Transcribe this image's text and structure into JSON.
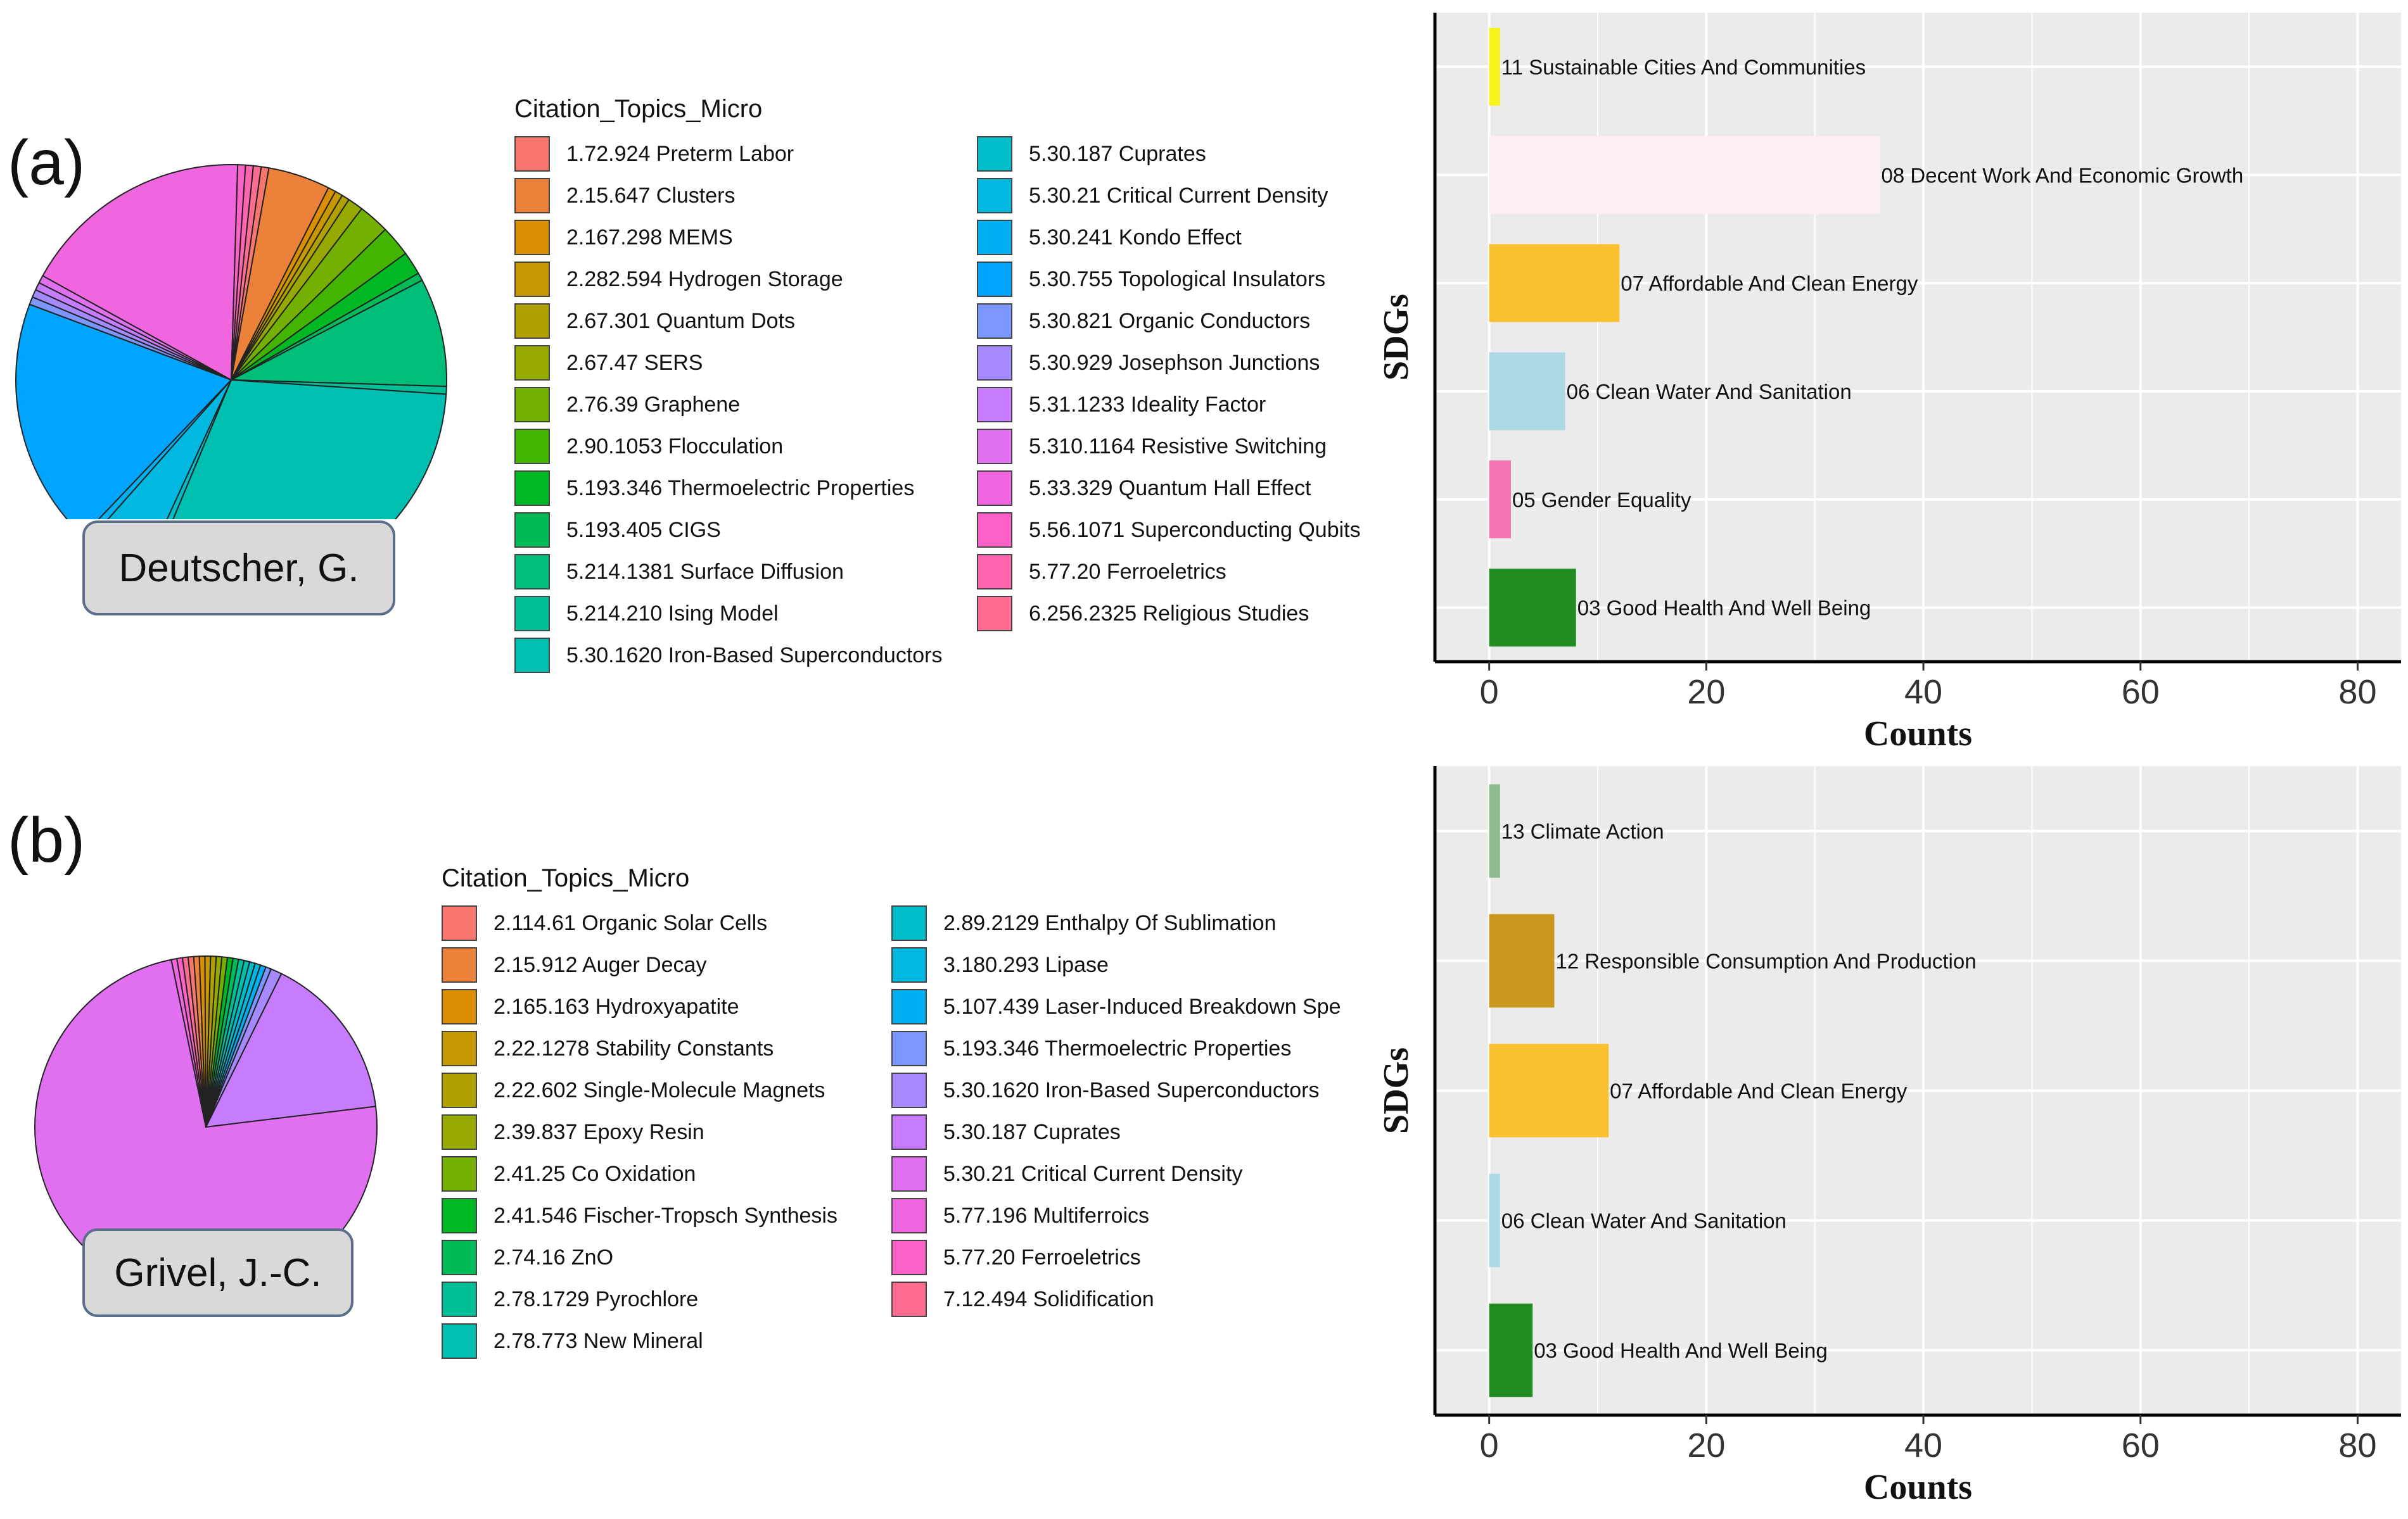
{
  "chart_data": [
    {
      "panel": "(a)",
      "type": "pie",
      "author": "Deutscher, G.",
      "legend_title": "Citation_Topics_Micro",
      "slices": [
        {
          "label": "1.72.924 Preterm Labor",
          "value": 1,
          "color": "#F8766D"
        },
        {
          "label": "2.15.647 Clusters",
          "value": 8,
          "color": "#EC8239"
        },
        {
          "label": "2.167.298 MEMS",
          "value": 1,
          "color": "#DB8E00"
        },
        {
          "label": "2.282.594 Hydrogen Storage",
          "value": 1,
          "color": "#C79800"
        },
        {
          "label": "2.67.301 Quantum Dots",
          "value": 1,
          "color": "#B0A100"
        },
        {
          "label": "2.67.47 SERS",
          "value": 2,
          "color": "#96A900"
        },
        {
          "label": "2.76.39 Graphene",
          "value": 4,
          "color": "#74B000"
        },
        {
          "label": "2.90.1053 Flocculation",
          "value": 4,
          "color": "#43B500"
        },
        {
          "label": "5.193.346 Thermoelectric Properties",
          "value": 3,
          "color": "#00B823"
        },
        {
          "label": "5.193.405 CIGS",
          "value": 1,
          "color": "#00BB57"
        },
        {
          "label": "5.214.1381 Surface Diffusion",
          "value": 14,
          "color": "#00BD78"
        },
        {
          "label": "5.214.210 Ising Model",
          "value": 1,
          "color": "#00BE96"
        },
        {
          "label": "5.30.1620 Iron-Based Superconductors",
          "value": 52,
          "color": "#00BFB1"
        },
        {
          "label": "5.30.187 Cuprates",
          "value": 1,
          "color": "#00BDCA"
        },
        {
          "label": "5.30.21 Critical Current Density",
          "value": 8,
          "color": "#00B8E0"
        },
        {
          "label": "5.30.241 Kondo Effect",
          "value": 1,
          "color": "#00B0F3"
        },
        {
          "label": "5.30.755 Topological Insulators",
          "value": 32,
          "color": "#00A5FF"
        },
        {
          "label": "5.30.821 Organic Conductors",
          "value": 1,
          "color": "#7C96FF"
        },
        {
          "label": "5.30.929 Josephson Junctions",
          "value": 1,
          "color": "#A58AFF"
        },
        {
          "label": "5.31.1233 Ideality Factor",
          "value": 1,
          "color": "#C77CFF"
        },
        {
          "label": "5.310.1164 Resistive Switching",
          "value": 1,
          "color": "#E070F0"
        },
        {
          "label": "5.33.329 Quantum Hall Effect",
          "value": 30,
          "color": "#F066DE"
        },
        {
          "label": "5.56.1071 Superconducting Qubits",
          "value": 1,
          "color": "#FB61C7"
        },
        {
          "label": "5.77.20 Ferroeletrics",
          "value": 1,
          "color": "#FF64AE"
        },
        {
          "label": "6.256.2325 Religious Studies",
          "value": 1,
          "color": "#FF6C92"
        }
      ]
    },
    {
      "panel": "(a)",
      "type": "bar",
      "orientation": "horizontal",
      "xlabel": "Counts",
      "ylabel": "SDGs",
      "xlim": [
        -5,
        84
      ],
      "xticks": [
        0,
        20,
        40,
        60,
        80
      ],
      "grid": true,
      "categories": [
        "11 Sustainable Cities And Communities",
        "08 Decent Work And Economic Growth",
        "07 Affordable And Clean Energy",
        "06 Clean Water And Sanitation",
        "05 Gender Equality",
        "03 Good Health And Well Being"
      ],
      "values": [
        1,
        36,
        12,
        7,
        2,
        8
      ],
      "colors": [
        "#F7F21A",
        "#FDEEF3",
        "#FBC02D",
        "#ADD8E6",
        "#F774B3",
        "#228B22"
      ]
    },
    {
      "panel": "(b)",
      "type": "pie",
      "author": "Grivel, J.-C.",
      "legend_title": "Citation_Topics_Micro",
      "slices": [
        {
          "label": "2.114.61 Organic Solar Cells",
          "value": 1,
          "color": "#F8766D"
        },
        {
          "label": "2.15.912 Auger Decay",
          "value": 1,
          "color": "#EC8239"
        },
        {
          "label": "2.165.163 Hydroxyapatite",
          "value": 1,
          "color": "#DB8E00"
        },
        {
          "label": "2.22.1278 Stability Constants",
          "value": 1,
          "color": "#C79800"
        },
        {
          "label": "2.22.602 Single-Molecule Magnets",
          "value": 1,
          "color": "#B0A100"
        },
        {
          "label": "2.39.837 Epoxy Resin",
          "value": 1,
          "color": "#96A900"
        },
        {
          "label": "2.41.25 Co Oxidation",
          "value": 1,
          "color": "#74B000"
        },
        {
          "label": "2.41.546 Fischer-Tropsch Synthesis",
          "value": 1,
          "color": "#00B823"
        },
        {
          "label": "2.74.16 ZnO",
          "value": 1,
          "color": "#00BB57"
        },
        {
          "label": "2.78.1729 Pyrochlore",
          "value": 1,
          "color": "#00BE96"
        },
        {
          "label": "2.78.773 New Mineral",
          "value": 1,
          "color": "#00BFB1"
        },
        {
          "label": "2.89.2129 Enthalpy Of Sublimation",
          "value": 1,
          "color": "#00BDCA"
        },
        {
          "label": "3.180.293 Lipase",
          "value": 1,
          "color": "#00B8E0"
        },
        {
          "label": "5.107.439 Laser-Induced Breakdown Spe",
          "value": 1,
          "color": "#00B0F3"
        },
        {
          "label": "5.193.346 Thermoelectric Properties",
          "value": 1,
          "color": "#7C96FF"
        },
        {
          "label": "5.30.1620 Iron-Based Superconductors",
          "value": 2,
          "color": "#A58AFF"
        },
        {
          "label": "5.30.187 Cuprates",
          "value": 30,
          "color": "#C77CFF"
        },
        {
          "label": "5.30.21 Critical Current Density",
          "value": 140,
          "color": "#E070F0"
        },
        {
          "label": "5.77.196 Multiferroics",
          "value": 1,
          "color": "#F066DE"
        },
        {
          "label": "5.77.20 Ferroeletrics",
          "value": 1,
          "color": "#FB61C7"
        },
        {
          "label": "7.12.494 Solidification",
          "value": 1,
          "color": "#FF6C92"
        }
      ]
    },
    {
      "panel": "(b)",
      "type": "bar",
      "orientation": "horizontal",
      "xlabel": "Counts",
      "ylabel": "SDGs",
      "xlim": [
        -5,
        84
      ],
      "xticks": [
        0,
        20,
        40,
        60,
        80
      ],
      "grid": true,
      "categories": [
        "13 Climate Action",
        "12 Responsible Consumption And Production",
        "07 Affordable And Clean Energy",
        "06 Clean Water And Sanitation",
        "03 Good Health And Well Being"
      ],
      "values": [
        1,
        6,
        11,
        1,
        4
      ],
      "colors": [
        "#8FBC8F",
        "#C9961E",
        "#FBC02D",
        "#ADD8E6",
        "#228B22"
      ]
    }
  ]
}
